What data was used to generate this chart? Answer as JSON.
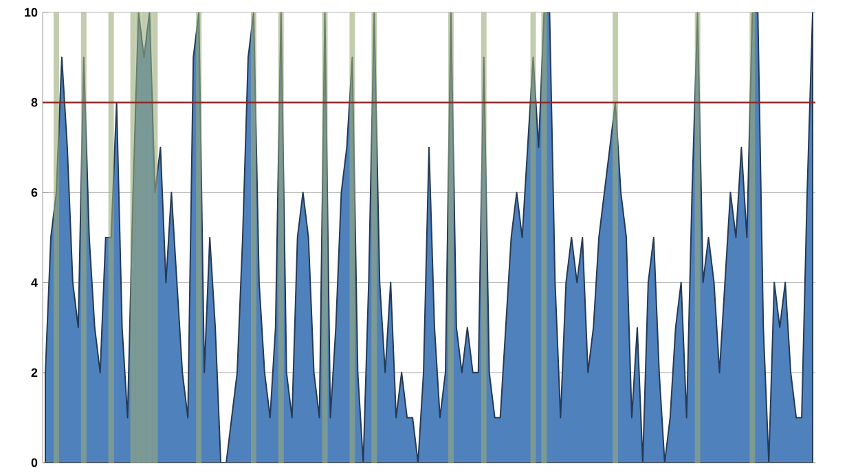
{
  "chart_data": {
    "type": "area",
    "categories": [
      null,
      null,
      null,
      null,
      null,
      null,
      null,
      null,
      null,
      null,
      null,
      null,
      null,
      null,
      null,
      null,
      null,
      null,
      null,
      null,
      null,
      null,
      null,
      null,
      null,
      null,
      null,
      null,
      null,
      null,
      null,
      null,
      null,
      null,
      null,
      null,
      null,
      null,
      null,
      null,
      null,
      null,
      null,
      null,
      null,
      null,
      null,
      null,
      null,
      null,
      null,
      null,
      null,
      null,
      null,
      null,
      null,
      null,
      null,
      null,
      null,
      null,
      null,
      null,
      null,
      null,
      null,
      null,
      null,
      null,
      null,
      null,
      null,
      null,
      null,
      null,
      null,
      null,
      null,
      null,
      null,
      null,
      null,
      null,
      null,
      null,
      null,
      null,
      null,
      null,
      null,
      null,
      null,
      null,
      null,
      null,
      null,
      null,
      null,
      null,
      null,
      null,
      null,
      null,
      null,
      null,
      null,
      null,
      null,
      null,
      null,
      null,
      null,
      null,
      null,
      null,
      null,
      null,
      null,
      null,
      null,
      null,
      null,
      null,
      null,
      null,
      null,
      null,
      null,
      null,
      null,
      null,
      null,
      null,
      null,
      null,
      null,
      null,
      null,
      null,
      null
    ],
    "series": [
      {
        "color": "#4f81bd",
        "values": [
          2,
          5,
          6,
          9,
          7,
          4,
          3,
          9,
          5,
          3,
          2,
          5,
          5,
          8,
          3,
          1,
          6,
          10,
          9,
          10,
          6,
          7,
          4,
          6,
          4,
          2,
          1,
          9,
          10,
          2,
          5,
          3,
          0,
          0,
          1,
          2,
          5,
          9,
          10,
          4,
          2,
          1,
          3,
          10,
          2,
          1,
          5,
          6,
          5,
          2,
          1,
          10,
          1,
          3,
          6,
          7,
          9,
          2,
          0,
          4,
          10,
          4,
          2,
          4,
          1,
          2,
          1,
          1,
          0,
          2,
          7,
          3,
          1,
          2,
          10,
          3,
          2,
          3,
          2,
          2,
          9,
          2,
          1,
          1,
          3,
          5,
          6,
          5,
          7,
          9,
          7,
          10,
          10,
          4,
          1,
          4,
          5,
          4,
          5,
          2,
          3,
          5,
          6,
          7,
          8,
          6,
          5,
          1,
          3,
          0,
          4,
          5,
          2,
          0,
          1,
          3,
          4,
          1,
          6,
          10,
          4,
          5,
          4,
          2,
          4,
          6,
          5,
          7,
          5,
          10,
          10,
          3,
          0,
          4,
          3,
          4,
          2,
          1,
          1,
          6,
          10
        ]
      },
      {
        "type": "bar",
        "color": "#9aab7a",
        "values": [
          null,
          null,
          10,
          null,
          null,
          null,
          null,
          10,
          null,
          null,
          null,
          null,
          10,
          null,
          null,
          null,
          10,
          10,
          10,
          10,
          10,
          null,
          null,
          null,
          null,
          null,
          null,
          null,
          10,
          null,
          null,
          null,
          null,
          null,
          null,
          null,
          null,
          null,
          10,
          null,
          null,
          null,
          null,
          10,
          null,
          null,
          null,
          null,
          null,
          null,
          null,
          10,
          null,
          null,
          null,
          null,
          10,
          null,
          null,
          null,
          10,
          null,
          null,
          null,
          null,
          null,
          null,
          null,
          null,
          null,
          null,
          null,
          null,
          null,
          10,
          null,
          null,
          null,
          null,
          null,
          10,
          null,
          null,
          null,
          null,
          null,
          null,
          null,
          null,
          10,
          null,
          10,
          null,
          null,
          null,
          null,
          null,
          null,
          null,
          null,
          null,
          null,
          null,
          null,
          10,
          null,
          null,
          null,
          null,
          null,
          null,
          null,
          null,
          null,
          null,
          null,
          null,
          null,
          null,
          10,
          null,
          null,
          null,
          null,
          null,
          null,
          null,
          null,
          null,
          10,
          null,
          null,
          null,
          null,
          null,
          null,
          null,
          null,
          null,
          null,
          null
        ]
      }
    ],
    "ylim": [
      0,
      10
    ],
    "yticks": [
      0,
      2,
      4,
      6,
      8,
      10
    ],
    "grid": "y",
    "tick_labels": "y",
    "ref_lines": [
      {
        "axis": "y",
        "value": 8,
        "color": "#8b2a2a"
      }
    ]
  }
}
